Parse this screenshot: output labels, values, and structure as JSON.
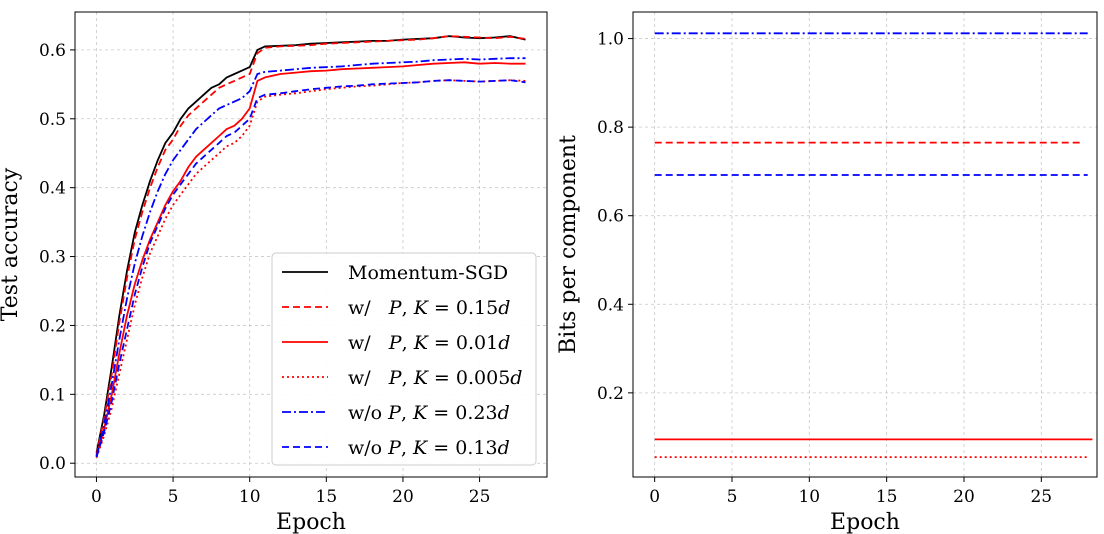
{
  "chart_data": [
    {
      "type": "line",
      "xlabel": "Epoch",
      "ylabel": "Test accuracy",
      "xlim": [
        -1.4,
        29.4
      ],
      "ylim": [
        -0.02,
        0.655
      ],
      "xticks": [
        0,
        5,
        10,
        15,
        20,
        25
      ],
      "yticks": [
        0.0,
        0.1,
        0.2,
        0.3,
        0.4,
        0.5,
        0.6
      ],
      "ytick_labels": [
        "0.0",
        "0.1",
        "0.2",
        "0.3",
        "0.4",
        "0.5",
        "0.6"
      ],
      "grid": true,
      "legend_position": "lower-right",
      "series": [
        {
          "name": "Momentum-SGD",
          "color": "#000000",
          "dash": "solid",
          "x": [
            0,
            0.5,
            1,
            1.5,
            2,
            2.5,
            3,
            3.5,
            4,
            4.5,
            5,
            5.5,
            6,
            6.5,
            7,
            7.5,
            8,
            8.5,
            9,
            9.5,
            10,
            10.5,
            11,
            12,
            13,
            14,
            15,
            16,
            17,
            18,
            19,
            20,
            21,
            22,
            23,
            24,
            25,
            26,
            27,
            28
          ],
          "y": [
            0.015,
            0.07,
            0.14,
            0.215,
            0.28,
            0.335,
            0.375,
            0.41,
            0.44,
            0.465,
            0.48,
            0.5,
            0.515,
            0.525,
            0.535,
            0.545,
            0.55,
            0.56,
            0.565,
            0.57,
            0.575,
            0.6,
            0.605,
            0.606,
            0.607,
            0.609,
            0.61,
            0.611,
            0.612,
            0.613,
            0.613,
            0.615,
            0.616,
            0.617,
            0.62,
            0.618,
            0.617,
            0.618,
            0.62,
            0.615
          ]
        },
        {
          "name": "w/ P, K=0.15d",
          "color": "#ff0000",
          "dash": "dashed",
          "x": [
            0,
            0.5,
            1,
            1.5,
            2,
            2.5,
            3,
            3.5,
            4,
            4.5,
            5,
            5.5,
            6,
            6.5,
            7,
            7.5,
            8,
            8.5,
            9,
            9.5,
            10,
            10.5,
            11,
            12,
            13,
            14,
            15,
            16,
            17,
            18,
            19,
            20,
            21,
            22,
            23,
            24,
            25,
            26,
            27,
            28
          ],
          "y": [
            0.012,
            0.065,
            0.13,
            0.205,
            0.27,
            0.325,
            0.365,
            0.4,
            0.43,
            0.455,
            0.47,
            0.49,
            0.505,
            0.515,
            0.525,
            0.535,
            0.545,
            0.55,
            0.555,
            0.56,
            0.565,
            0.595,
            0.603,
            0.605,
            0.606,
            0.607,
            0.609,
            0.61,
            0.611,
            0.612,
            0.613,
            0.614,
            0.615,
            0.617,
            0.62,
            0.619,
            0.618,
            0.617,
            0.619,
            0.616
          ]
        },
        {
          "name": "w/ P, K=0.01d",
          "color": "#ff0000",
          "dash": "solid",
          "x": [
            0,
            0.5,
            1,
            1.5,
            2,
            2.5,
            3,
            3.5,
            4,
            4.5,
            5,
            5.5,
            6,
            6.5,
            7,
            7.5,
            8,
            8.5,
            9,
            9.5,
            10,
            10.5,
            11,
            12,
            13,
            14,
            15,
            16,
            17,
            18,
            19,
            20,
            21,
            22,
            23,
            24,
            25,
            26,
            27,
            28
          ],
          "y": [
            0.01,
            0.05,
            0.1,
            0.16,
            0.215,
            0.26,
            0.295,
            0.325,
            0.35,
            0.375,
            0.395,
            0.41,
            0.43,
            0.445,
            0.455,
            0.465,
            0.475,
            0.485,
            0.49,
            0.5,
            0.515,
            0.555,
            0.56,
            0.565,
            0.567,
            0.569,
            0.57,
            0.572,
            0.573,
            0.574,
            0.575,
            0.576,
            0.578,
            0.58,
            0.581,
            0.582,
            0.58,
            0.581,
            0.58,
            0.58
          ]
        },
        {
          "name": "w/ P, K=0.005d",
          "color": "#ff0000",
          "dash": "dotted",
          "x": [
            0,
            0.5,
            1,
            1.5,
            2,
            2.5,
            3,
            3.5,
            4,
            4.5,
            5,
            5.5,
            6,
            6.5,
            7,
            7.5,
            8,
            8.5,
            9,
            9.5,
            10,
            10.5,
            11,
            12,
            13,
            14,
            15,
            16,
            17,
            18,
            19,
            20,
            21,
            22,
            23,
            24,
            25,
            26,
            27,
            28
          ],
          "y": [
            0.008,
            0.04,
            0.08,
            0.13,
            0.18,
            0.23,
            0.27,
            0.305,
            0.33,
            0.355,
            0.375,
            0.39,
            0.405,
            0.42,
            0.43,
            0.44,
            0.45,
            0.46,
            0.465,
            0.475,
            0.49,
            0.525,
            0.532,
            0.535,
            0.537,
            0.54,
            0.543,
            0.545,
            0.547,
            0.548,
            0.55,
            0.552,
            0.553,
            0.555,
            0.556,
            0.555,
            0.554,
            0.555,
            0.556,
            0.555
          ]
        },
        {
          "name": "w/o P, K=0.23d",
          "color": "#0000ff",
          "dash": "dashdot",
          "x": [
            0,
            0.5,
            1,
            1.5,
            2,
            2.5,
            3,
            3.5,
            4,
            4.5,
            5,
            5.5,
            6,
            6.5,
            7,
            7.5,
            8,
            8.5,
            9,
            9.5,
            10,
            10.5,
            11,
            12,
            13,
            14,
            15,
            16,
            17,
            18,
            19,
            20,
            21,
            22,
            23,
            24,
            25,
            26,
            27,
            28
          ],
          "y": [
            0.01,
            0.055,
            0.115,
            0.18,
            0.24,
            0.29,
            0.33,
            0.365,
            0.395,
            0.42,
            0.44,
            0.455,
            0.47,
            0.485,
            0.495,
            0.505,
            0.515,
            0.52,
            0.525,
            0.53,
            0.54,
            0.565,
            0.568,
            0.57,
            0.572,
            0.574,
            0.575,
            0.576,
            0.578,
            0.58,
            0.581,
            0.582,
            0.583,
            0.585,
            0.586,
            0.587,
            0.586,
            0.587,
            0.588,
            0.588
          ]
        },
        {
          "name": "w/o P, K=0.13d",
          "color": "#0000ff",
          "dash": "dashed",
          "x": [
            0,
            0.5,
            1,
            1.5,
            2,
            2.5,
            3,
            3.5,
            4,
            4.5,
            5,
            5.5,
            6,
            6.5,
            7,
            7.5,
            8,
            8.5,
            9,
            9.5,
            10,
            10.5,
            11,
            12,
            13,
            14,
            15,
            16,
            17,
            18,
            19,
            20,
            21,
            22,
            23,
            24,
            25,
            26,
            27,
            28
          ],
          "y": [
            0.009,
            0.045,
            0.09,
            0.145,
            0.195,
            0.245,
            0.285,
            0.32,
            0.345,
            0.37,
            0.39,
            0.405,
            0.42,
            0.435,
            0.445,
            0.455,
            0.465,
            0.475,
            0.48,
            0.49,
            0.5,
            0.53,
            0.535,
            0.537,
            0.54,
            0.543,
            0.545,
            0.547,
            0.548,
            0.55,
            0.551,
            0.552,
            0.553,
            0.555,
            0.556,
            0.555,
            0.554,
            0.555,
            0.556,
            0.553
          ]
        }
      ]
    },
    {
      "type": "line",
      "xlabel": "Epoch",
      "ylabel": "Bits per component",
      "xlim": [
        -1.4,
        28.6
      ],
      "ylim": [
        0.01,
        1.06
      ],
      "xticks": [
        0,
        5,
        10,
        15,
        20,
        25
      ],
      "yticks": [
        0.2,
        0.4,
        0.6,
        0.8,
        1.0
      ],
      "ytick_labels": [
        "0.2",
        "0.4",
        "0.6",
        "0.8",
        "1.0"
      ],
      "grid": true,
      "series": [
        {
          "name": "",
          "color": "#0000ff",
          "dash": "dashdot",
          "x": [
            0,
            28
          ],
          "y": [
            1.012,
            1.012
          ]
        },
        {
          "name": "",
          "color": "#ff0000",
          "dash": "dashed",
          "x": [
            0,
            27.5
          ],
          "y": [
            0.765,
            0.765
          ]
        },
        {
          "name": "",
          "color": "#0000ff",
          "dash": "dashed",
          "x": [
            0,
            28
          ],
          "y": [
            0.692,
            0.692
          ]
        },
        {
          "name": "",
          "color": "#ff0000",
          "dash": "solid",
          "x": [
            0,
            28.3
          ],
          "y": [
            0.095,
            0.095
          ]
        },
        {
          "name": "",
          "color": "#ff0000",
          "dash": "dotted",
          "x": [
            0,
            28
          ],
          "y": [
            0.055,
            0.055
          ]
        }
      ]
    }
  ],
  "legend": [
    {
      "parts": [
        {
          "t": "Momentum-SGD",
          "i": false
        }
      ]
    },
    {
      "parts": [
        {
          "t": "w/   ",
          "i": false
        },
        {
          "t": "P",
          "i": true
        },
        {
          "t": ", ",
          "i": false
        },
        {
          "t": "K",
          "i": true
        },
        {
          "t": " = 0.15",
          "i": false
        },
        {
          "t": "d",
          "i": true
        }
      ]
    },
    {
      "parts": [
        {
          "t": "w/   ",
          "i": false
        },
        {
          "t": "P",
          "i": true
        },
        {
          "t": ", ",
          "i": false
        },
        {
          "t": "K",
          "i": true
        },
        {
          "t": " = 0.01",
          "i": false
        },
        {
          "t": "d",
          "i": true
        }
      ]
    },
    {
      "parts": [
        {
          "t": "w/   ",
          "i": false
        },
        {
          "t": "P",
          "i": true
        },
        {
          "t": ", ",
          "i": false
        },
        {
          "t": "K",
          "i": true
        },
        {
          "t": " = 0.005",
          "i": false
        },
        {
          "t": "d",
          "i": true
        }
      ]
    },
    {
      "parts": [
        {
          "t": "w/o ",
          "i": false
        },
        {
          "t": "P",
          "i": true
        },
        {
          "t": ", ",
          "i": false
        },
        {
          "t": "K",
          "i": true
        },
        {
          "t": " = 0.23",
          "i": false
        },
        {
          "t": "d",
          "i": true
        }
      ]
    },
    {
      "parts": [
        {
          "t": "w/o ",
          "i": false
        },
        {
          "t": "P",
          "i": true
        },
        {
          "t": ", ",
          "i": false
        },
        {
          "t": "K",
          "i": true
        },
        {
          "t": " = 0.13",
          "i": false
        },
        {
          "t": "d",
          "i": true
        }
      ]
    }
  ]
}
